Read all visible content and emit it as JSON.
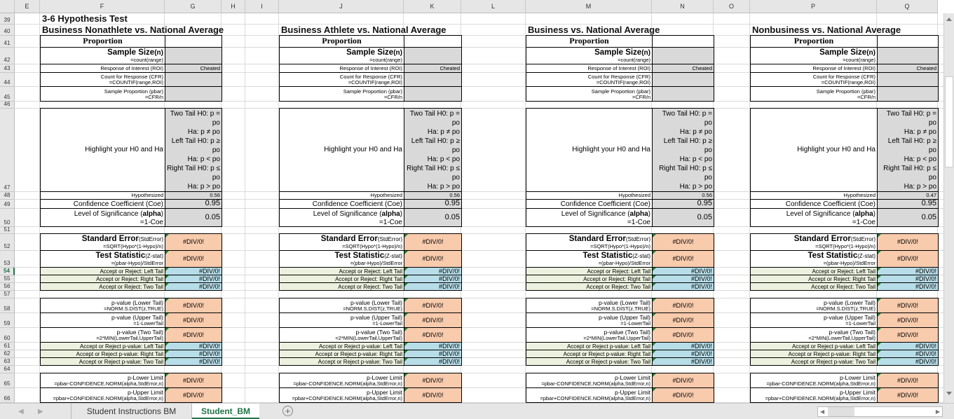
{
  "columns": [
    "E",
    "F",
    "G",
    "H",
    "I",
    "J",
    "K",
    "L",
    "M",
    "N",
    "O",
    "P",
    "Q"
  ],
  "rows": [
    "39",
    "40",
    "41",
    "42",
    "43",
    "44",
    "45",
    "46",
    "47",
    "48",
    "49",
    "50",
    "51",
    "52",
    "53",
    "54",
    "55",
    "56",
    "57",
    "58",
    "59",
    "60",
    "61",
    "62",
    "63",
    "64",
    "65",
    "66"
  ],
  "selected_row": "54",
  "sheet_title": "3-6 Hypothesis Test",
  "labels": {
    "proportion": "Proportion",
    "sample_size": "Sample Size",
    "sample_size_n": "(n)",
    "sample_size_formula": "=count(range)",
    "roi": "Response of Interest (ROI)",
    "roi_value": "Cheated",
    "cfr": "Count for Response (CFR)",
    "cfr_formula": "=COUNTIF(range,ROI)",
    "pbar": "Sample Proportion (pbar)",
    "pbar_formula": "=CFR/n",
    "highlight": "Highlight your H0 and Ha",
    "hypotheses": [
      "Two Tail H0: p =",
      "po",
      "Ha: p ≠ po",
      "Left Tail H0: p ≥",
      "po",
      "Ha: p < po",
      "Right Tail H0: p ≤",
      "po",
      "Ha: p > po"
    ],
    "hypothesized": "Hypothesized",
    "coe": "Confidence Coefficient (Coe)",
    "coe_value": "0.95",
    "alpha_pre": "Level of Significance (",
    "alpha": "alpha",
    "alpha_post": ")",
    "alpha_formula": "=1-Coe",
    "alpha_value": "0.05",
    "stderr": "Standard Error",
    "stderr_sub": "(StdError)",
    "stderr_formula": "=SQRT(Hypo*(1-Hypo)/n)",
    "zstat": "Test Statistic",
    "zstat_sub": "(Z-stat)",
    "zstat_formula": "=(pbar-Hypo)/StdError",
    "ar_left": "Accept or Reject: Left Tail",
    "ar_right": "Accept or Reject: Right Tail",
    "ar_two": "Accept or Reject: Two Tail",
    "pv_lower": "p-value (Lower Tail)",
    "pv_lower_formula": "=NORM.S.DIST(z,TRUE)",
    "pv_upper": "p-value (Upper Tail)",
    "pv_upper_formula": "=1-LowerTail",
    "pv_two": "p-value (Two Tail)",
    "pv_two_formula": "=2*MIN(LowerTail,UpperTail)",
    "arp_left": "Accept or Reject p-value: Left Tail",
    "arp_right": "Accept or Reject p-value: Right Tail",
    "arp_two": "Accept or Reject p-value: Two Tail",
    "plower": "p-Lower Limit",
    "plower_formula": "=pbar-CONFIDENCE.NORM(alpha,StdError,n)",
    "pupper": "p-Upper Limit",
    "pupper_formula": "=pbar+CONFIDENCE.NORM(alpha,StdError,n)",
    "error": "#DIV/0!"
  },
  "blocks": [
    {
      "title": "Business Nonathlete vs. National Average",
      "hypothesized": "0.56"
    },
    {
      "title": "Business Athlete vs. National Average",
      "hypothesized": "0.56"
    },
    {
      "title": "Business vs. National Average",
      "hypothesized": "0.56"
    },
    {
      "title": "Nonbusiness vs. National Average",
      "hypothesized": "0.47"
    }
  ],
  "tabs": [
    {
      "label": "Student Instructions BM",
      "active": false
    },
    {
      "label": "Student_BM",
      "active": true
    }
  ],
  "colors": {
    "input_gray": "#d9d9d9",
    "result_orange": "#f8cbad",
    "decision_blue": "#b7dde8",
    "label_green": "#ebf1de",
    "excel_green": "#217346"
  }
}
